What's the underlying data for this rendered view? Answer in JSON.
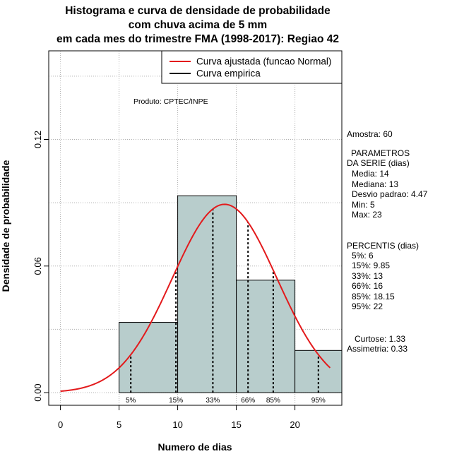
{
  "title": {
    "line1": "Histograma e curva de densidade de probabilidade",
    "line2": "com chuva acima de 5 mm",
    "line3": "em cada mes do trimestre FMA (1998-2017): Regiao 42"
  },
  "product_label": "Produto: CPTEC/INPE",
  "legend": {
    "fitted": "Curva ajustada (funcao Normal)",
    "empirical": "Curva empirica"
  },
  "stats": {
    "amostra": "Amostra: 60",
    "params_title1": "PARAMETROS",
    "params_title2": "DA SERIE (dias)",
    "media": "Media: 14",
    "mediana": "Mediana: 13",
    "desvio": "Desvio padrao: 4.47",
    "min": "Min: 5",
    "max": "Max: 23",
    "perc_title": "PERCENTIS (dias)",
    "p5": "5%: 6",
    "p15": "15%: 9.85",
    "p33": "33%: 13",
    "p66": "66%: 16",
    "p85": "85%: 18.15",
    "p95": "95%: 22",
    "curtose": "Curtose: 1.33",
    "assimetria": "Assimetria: 0.33"
  },
  "chart_data": {
    "type": "bar",
    "xlabel": "Numero de dias",
    "ylabel": "Densidade de probabilidade",
    "xlim": [
      -1,
      24
    ],
    "ylim": [
      -0.006,
      0.162
    ],
    "x_ticks": [
      0,
      5,
      10,
      15,
      20
    ],
    "y_ticks": [
      0.0,
      0.06,
      0.12
    ],
    "y_tick_labels": [
      "0.00",
      "0.06",
      "0.12"
    ],
    "grid": true,
    "legend_position": "top-right",
    "bins": [
      {
        "start": 5,
        "end": 10,
        "density": 0.0333
      },
      {
        "start": 10,
        "end": 15,
        "density": 0.0933
      },
      {
        "start": 15,
        "end": 20,
        "density": 0.0533
      },
      {
        "start": 20,
        "end": 24,
        "density": 0.02
      }
    ],
    "normal_fit": {
      "mean": 14,
      "sd": 4.47,
      "x_start": 0,
      "x_end": 23,
      "color": "#e31a1c"
    },
    "percentile_lines": [
      {
        "label": "5%",
        "x": 6
      },
      {
        "label": "15%",
        "x": 9.85
      },
      {
        "label": "33%",
        "x": 13
      },
      {
        "label": "66%",
        "x": 16
      },
      {
        "label": "85%",
        "x": 18.15
      },
      {
        "label": "95%",
        "x": 22
      }
    ],
    "bar_color": "#b8cdcc"
  }
}
